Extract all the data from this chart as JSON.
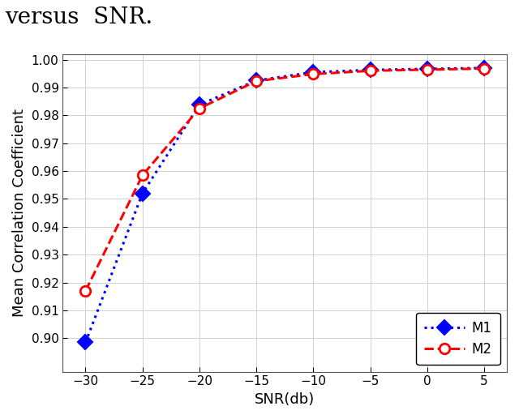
{
  "snr_M1": [
    -30,
    -25,
    -20,
    -15,
    -10,
    -5,
    0,
    5
  ],
  "M1_values": [
    0.8985,
    0.952,
    0.9838,
    0.9925,
    0.9955,
    0.9963,
    0.9967,
    0.997
  ],
  "snr_M2": [
    -30,
    -25,
    -20,
    -15,
    -10,
    -5,
    0,
    5
  ],
  "M2_values": [
    0.917,
    0.9585,
    0.9825,
    0.9923,
    0.9948,
    0.996,
    0.9964,
    0.9968
  ],
  "M1_color": "#0000FF",
  "M2_color": "#FF0000",
  "xlabel": "SNR(db)",
  "ylabel": "Mean Correlation Coefficient",
  "xlim": [
    -32,
    7
  ],
  "ylim": [
    0.888,
    1.002
  ],
  "xticks": [
    -30,
    -25,
    -20,
    -15,
    -10,
    -5,
    0,
    5
  ],
  "yticks": [
    0.9,
    0.91,
    0.92,
    0.93,
    0.94,
    0.95,
    0.96,
    0.97,
    0.98,
    0.99,
    1.0
  ],
  "grid_color": "#d0d0d0",
  "legend_labels": [
    "M1",
    "M2"
  ],
  "background_color": "#ffffff",
  "title": "versus  SNR."
}
